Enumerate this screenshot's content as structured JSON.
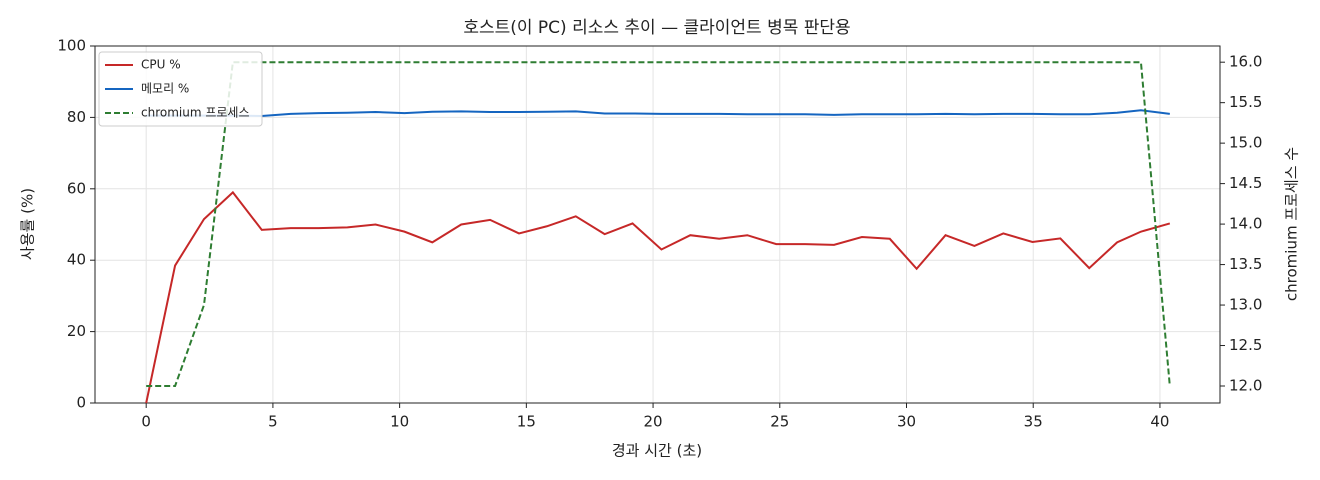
{
  "chart_data": {
    "type": "line",
    "title": "호스트(이 PC) 리소스 추이 — 클라이언트 병목 판단용",
    "x_label": "경과 시간 (초)",
    "y_label": "사용률 (%)",
    "y2_label": "chromium 프로세스 수",
    "x": [
      0,
      1.14,
      2.28,
      3.42,
      4.56,
      5.7,
      6.8,
      7.94,
      9.05,
      10.19,
      11.29,
      12.43,
      13.57,
      14.71,
      15.81,
      16.95,
      18.09,
      19.19,
      20.33,
      21.47,
      22.61,
      23.72,
      24.86,
      26.0,
      27.14,
      28.24,
      29.34,
      30.4,
      31.54,
      32.68,
      33.82,
      34.97,
      36.07,
      37.21,
      38.31,
      39.25,
      40.39
    ],
    "series": [
      {
        "name": "CPU %",
        "color": "#c62828",
        "dash": false,
        "values": [
          0,
          38.5,
          51.5,
          59,
          48.5,
          49,
          49,
          49.2,
          50,
          48,
          45,
          50,
          51.3,
          47.5,
          49.5,
          52.3,
          47.3,
          50.3,
          43,
          47,
          46,
          47,
          44.5,
          44.5,
          44.3,
          46.5,
          46,
          37.6,
          47,
          44,
          47.5,
          45.1,
          46.1,
          37.8,
          45,
          48,
          50.3
        ]
      },
      {
        "name": "메모리 %",
        "color": "#1565c0",
        "dash": false,
        "values": [
          80.5,
          80.5,
          80.5,
          80.5,
          80.4,
          81,
          81.2,
          81.3,
          81.5,
          81.2,
          81.6,
          81.7,
          81.5,
          81.5,
          81.6,
          81.7,
          81.1,
          81.1,
          81,
          81,
          81,
          80.9,
          80.9,
          80.9,
          80.7,
          80.9,
          80.9,
          80.9,
          81,
          80.9,
          81,
          81,
          80.9,
          80.9,
          81.3,
          82,
          81
        ]
      },
      {
        "name": "chromium 프로세스",
        "color": "#2e7d32",
        "dash": true,
        "axis": "y2",
        "values": [
          12,
          12,
          13,
          16,
          16,
          16,
          16,
          16,
          16,
          16,
          16,
          16,
          16,
          16,
          16,
          16,
          16,
          16,
          16,
          16,
          16,
          16,
          16,
          16,
          16,
          16,
          16,
          16,
          16,
          16,
          16,
          16,
          16,
          16,
          16,
          16,
          12
        ]
      }
    ],
    "xlim": [
      -2.02,
      42.37
    ],
    "xticks": [
      0,
      5,
      10,
      15,
      20,
      25,
      30,
      35,
      40
    ],
    "ylim": [
      0,
      100
    ],
    "yticks": [
      0,
      20,
      40,
      60,
      80,
      100
    ],
    "y2lim": [
      11.79,
      16.2
    ],
    "y2ticks": [
      {
        "value": 12,
        "label": "12.0"
      },
      {
        "value": 12.5,
        "label": "12.5"
      },
      {
        "value": 13,
        "label": "13.0"
      },
      {
        "value": 13.5,
        "label": "13.5"
      },
      {
        "value": 14,
        "label": "14.0"
      },
      {
        "value": 14.5,
        "label": "14.5"
      },
      {
        "value": 15,
        "label": "15.0"
      },
      {
        "value": 15.5,
        "label": "15.5"
      },
      {
        "value": 16,
        "label": "16.0"
      }
    ],
    "grid": true,
    "legend": "upper-left"
  }
}
